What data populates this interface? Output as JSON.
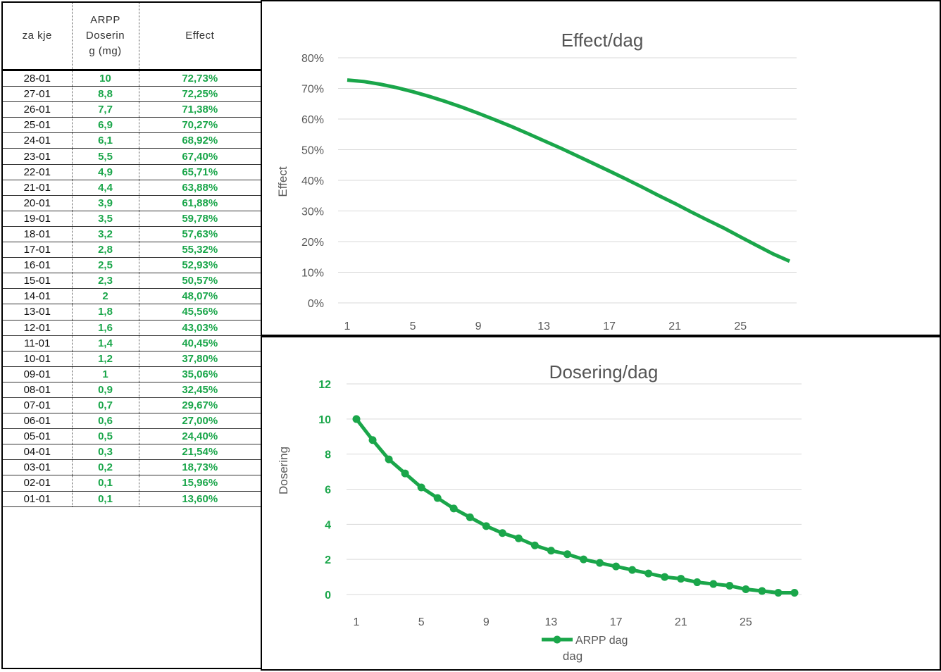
{
  "table": {
    "headers": [
      "za kje",
      "ARPP Doserin g (mg)",
      "Effect"
    ],
    "header_lines": [
      [
        "za kje"
      ],
      [
        "ARPP",
        "Doserin",
        "g (mg)"
      ],
      [
        "Effect"
      ]
    ],
    "rows": [
      [
        "28-01",
        "10",
        "72,73%"
      ],
      [
        "27-01",
        "8,8",
        "72,25%"
      ],
      [
        "26-01",
        "7,7",
        "71,38%"
      ],
      [
        "25-01",
        "6,9",
        "70,27%"
      ],
      [
        "24-01",
        "6,1",
        "68,92%"
      ],
      [
        "23-01",
        "5,5",
        "67,40%"
      ],
      [
        "22-01",
        "4,9",
        "65,71%"
      ],
      [
        "21-01",
        "4,4",
        "63,88%"
      ],
      [
        "20-01",
        "3,9",
        "61,88%"
      ],
      [
        "19-01",
        "3,5",
        "59,78%"
      ],
      [
        "18-01",
        "3,2",
        "57,63%"
      ],
      [
        "17-01",
        "2,8",
        "55,32%"
      ],
      [
        "16-01",
        "2,5",
        "52,93%"
      ],
      [
        "15-01",
        "2,3",
        "50,57%"
      ],
      [
        "14-01",
        "2",
        "48,07%"
      ],
      [
        "13-01",
        "1,8",
        "45,56%"
      ],
      [
        "12-01",
        "1,6",
        "43,03%"
      ],
      [
        "11-01",
        "1,4",
        "40,45%"
      ],
      [
        "10-01",
        "1,2",
        "37,80%"
      ],
      [
        "09-01",
        "1",
        "35,06%"
      ],
      [
        "08-01",
        "0,9",
        "32,45%"
      ],
      [
        "07-01",
        "0,7",
        "29,67%"
      ],
      [
        "06-01",
        "0,6",
        "27,00%"
      ],
      [
        "05-01",
        "0,5",
        "24,40%"
      ],
      [
        "04-01",
        "0,3",
        "21,54%"
      ],
      [
        "03-01",
        "0,2",
        "18,73%"
      ],
      [
        "02-01",
        "0,1",
        "15,96%"
      ],
      [
        "01-01",
        "0,1",
        "13,60%"
      ]
    ]
  },
  "colors": {
    "series": "#1aa64a",
    "grid": "#d9d9d9",
    "text": "#595959"
  },
  "chart_data": [
    {
      "type": "line",
      "title": "Effect/dag",
      "xlabel": "",
      "ylabel": "Effect",
      "ylim": [
        0,
        80
      ],
      "y_ticks": [
        "0%",
        "10%",
        "20%",
        "30%",
        "40%",
        "50%",
        "60%",
        "70%",
        "80%"
      ],
      "x_ticks": [
        "1",
        "5",
        "9",
        "13",
        "17",
        "21",
        "25"
      ],
      "grid": true,
      "x": [
        1,
        2,
        3,
        4,
        5,
        6,
        7,
        8,
        9,
        10,
        11,
        12,
        13,
        14,
        15,
        16,
        17,
        18,
        19,
        20,
        21,
        22,
        23,
        24,
        25,
        26,
        27,
        28
      ],
      "series": [
        {
          "values": [
            72.73,
            72.25,
            71.38,
            70.27,
            68.92,
            67.4,
            65.71,
            63.88,
            61.88,
            59.78,
            57.63,
            55.32,
            52.93,
            50.57,
            48.07,
            45.56,
            43.03,
            40.45,
            37.8,
            35.06,
            32.45,
            29.67,
            27.0,
            24.4,
            21.54,
            18.73,
            15.96,
            13.6
          ]
        }
      ]
    },
    {
      "type": "line",
      "title": "Dosering/dag",
      "xlabel": "dag",
      "ylabel": "Dosering",
      "ylim": [
        0,
        12
      ],
      "y_ticks": [
        "0",
        "2",
        "4",
        "6",
        "8",
        "10",
        "12"
      ],
      "x_ticks": [
        "1",
        "5",
        "9",
        "13",
        "17",
        "21",
        "25"
      ],
      "grid": true,
      "legend": "bottom",
      "x": [
        1,
        2,
        3,
        4,
        5,
        6,
        7,
        8,
        9,
        10,
        11,
        12,
        13,
        14,
        15,
        16,
        17,
        18,
        19,
        20,
        21,
        22,
        23,
        24,
        25,
        26,
        27,
        28
      ],
      "series": [
        {
          "name": "ARPP dag",
          "values": [
            10,
            8.8,
            7.7,
            6.9,
            6.1,
            5.5,
            4.9,
            4.4,
            3.9,
            3.5,
            3.2,
            2.8,
            2.5,
            2.3,
            2,
            1.8,
            1.6,
            1.4,
            1.2,
            1,
            0.9,
            0.7,
            0.6,
            0.5,
            0.3,
            0.2,
            0.1,
            0.1
          ]
        }
      ]
    }
  ]
}
